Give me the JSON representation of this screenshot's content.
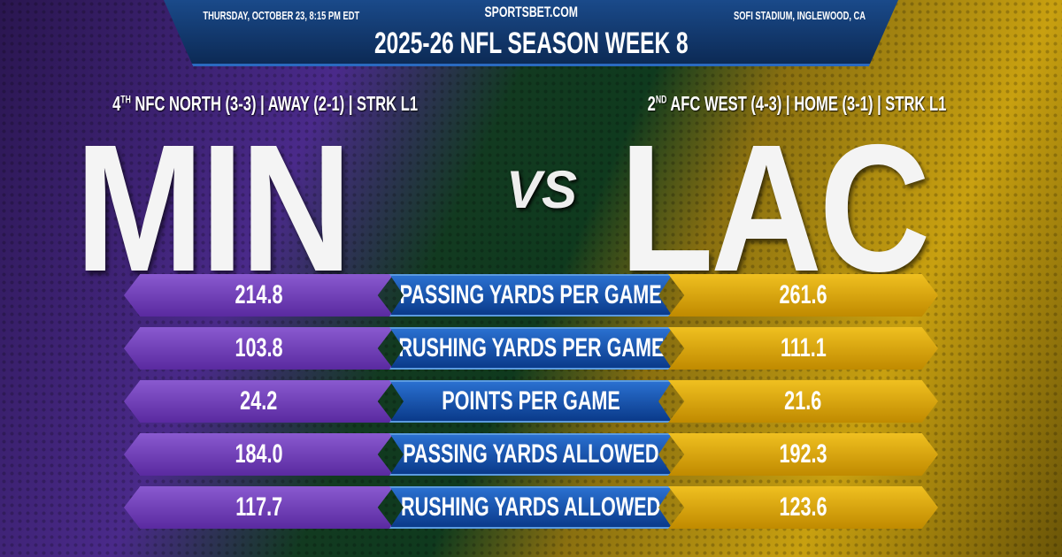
{
  "header": {
    "date": "THURSDAY, OCTOBER 23, 8:15 PM EDT",
    "site": "SPORTSBET.COM",
    "venue": "SOFI STADIUM, INGLEWOOD, CA",
    "title": "2025-26 NFL SEASON WEEK 8"
  },
  "away": {
    "rank": "4",
    "rank_suffix": "TH",
    "info": "NFC NORTH (3-3) | AWAY (2-1) | STRK L1",
    "abbr": "MIN",
    "color": "#6a3ab8"
  },
  "home": {
    "rank": "2",
    "rank_suffix": "ND",
    "info": "AFC WEST (4-3) | HOME (3-1) | STRK L1",
    "abbr": "LAC",
    "color": "#e0ac10"
  },
  "vs": "VS",
  "stats": [
    {
      "label": "PASSING YARDS PER GAME",
      "away": "214.8",
      "home": "261.6"
    },
    {
      "label": "RUSHING YARDS PER GAME",
      "away": "103.8",
      "home": "111.1"
    },
    {
      "label": "POINTS PER GAME",
      "away": "24.2",
      "home": "21.6"
    },
    {
      "label": "PASSING YARDS ALLOWED",
      "away": "184.0",
      "home": "192.3"
    },
    {
      "label": "RUSHING YARDS ALLOWED",
      "away": "117.7",
      "home": "123.6"
    }
  ]
}
